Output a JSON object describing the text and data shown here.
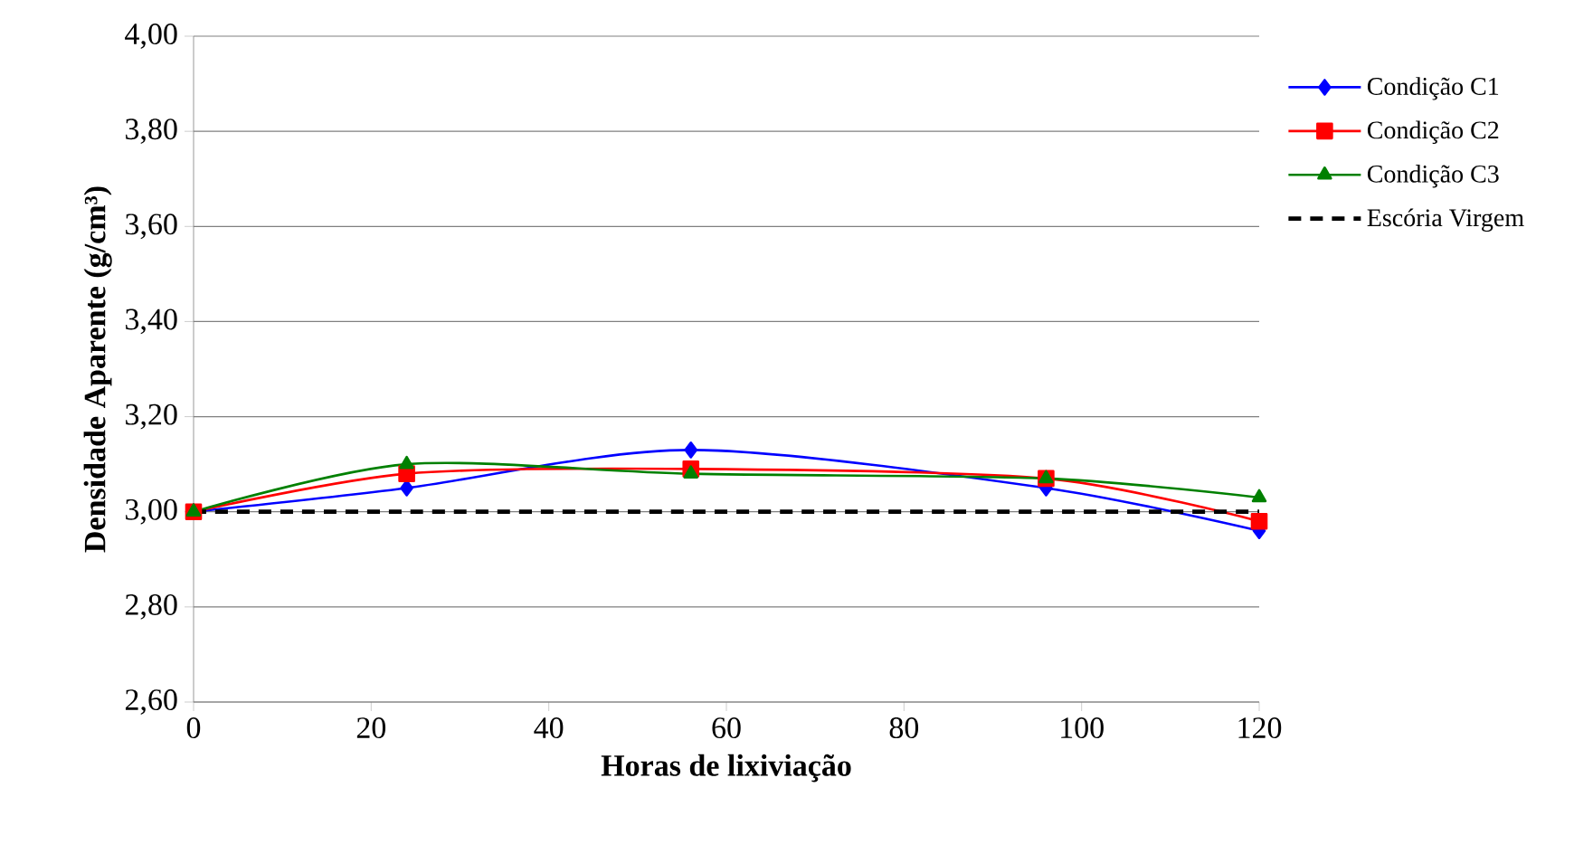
{
  "chart_data": {
    "type": "line",
    "xlabel": "Horas de lixiviação",
    "ylabel": "Densidade Aparente (g/cm³)",
    "x": [
      0,
      24,
      56,
      96,
      120
    ],
    "series": [
      {
        "name": "Condição C1",
        "color": "#0000ff",
        "marker": "diamond",
        "values": [
          3.0,
          3.05,
          3.13,
          3.05,
          2.96
        ]
      },
      {
        "name": "Condição C2",
        "color": "#ff0000",
        "marker": "square",
        "values": [
          3.0,
          3.08,
          3.09,
          3.07,
          2.98
        ]
      },
      {
        "name": "Condição C3",
        "color": "#008000",
        "marker": "triangle",
        "values": [
          3.0,
          3.1,
          3.08,
          3.07,
          3.03
        ]
      },
      {
        "name": "Escória Virgem",
        "color": "#000000",
        "marker": "none",
        "line_style": "dashed",
        "x": [
          0,
          120
        ],
        "values": [
          3.0,
          3.0
        ]
      }
    ],
    "xlim": [
      0,
      120
    ],
    "xticks": [
      0,
      20,
      40,
      60,
      80,
      100,
      120
    ],
    "ylim": [
      2.6,
      4.0
    ],
    "yticks": [
      {
        "value": 2.6,
        "label": "2,60"
      },
      {
        "value": 2.8,
        "label": "2,80"
      },
      {
        "value": 3.0,
        "label": "3,00"
      },
      {
        "value": 3.2,
        "label": "3,20"
      },
      {
        "value": 3.4,
        "label": "3,40"
      },
      {
        "value": 3.6,
        "label": "3,60"
      },
      {
        "value": 3.8,
        "label": "3,80"
      },
      {
        "value": 4.0,
        "label": "4,00"
      }
    ],
    "grid": "y",
    "legend": "right"
  }
}
